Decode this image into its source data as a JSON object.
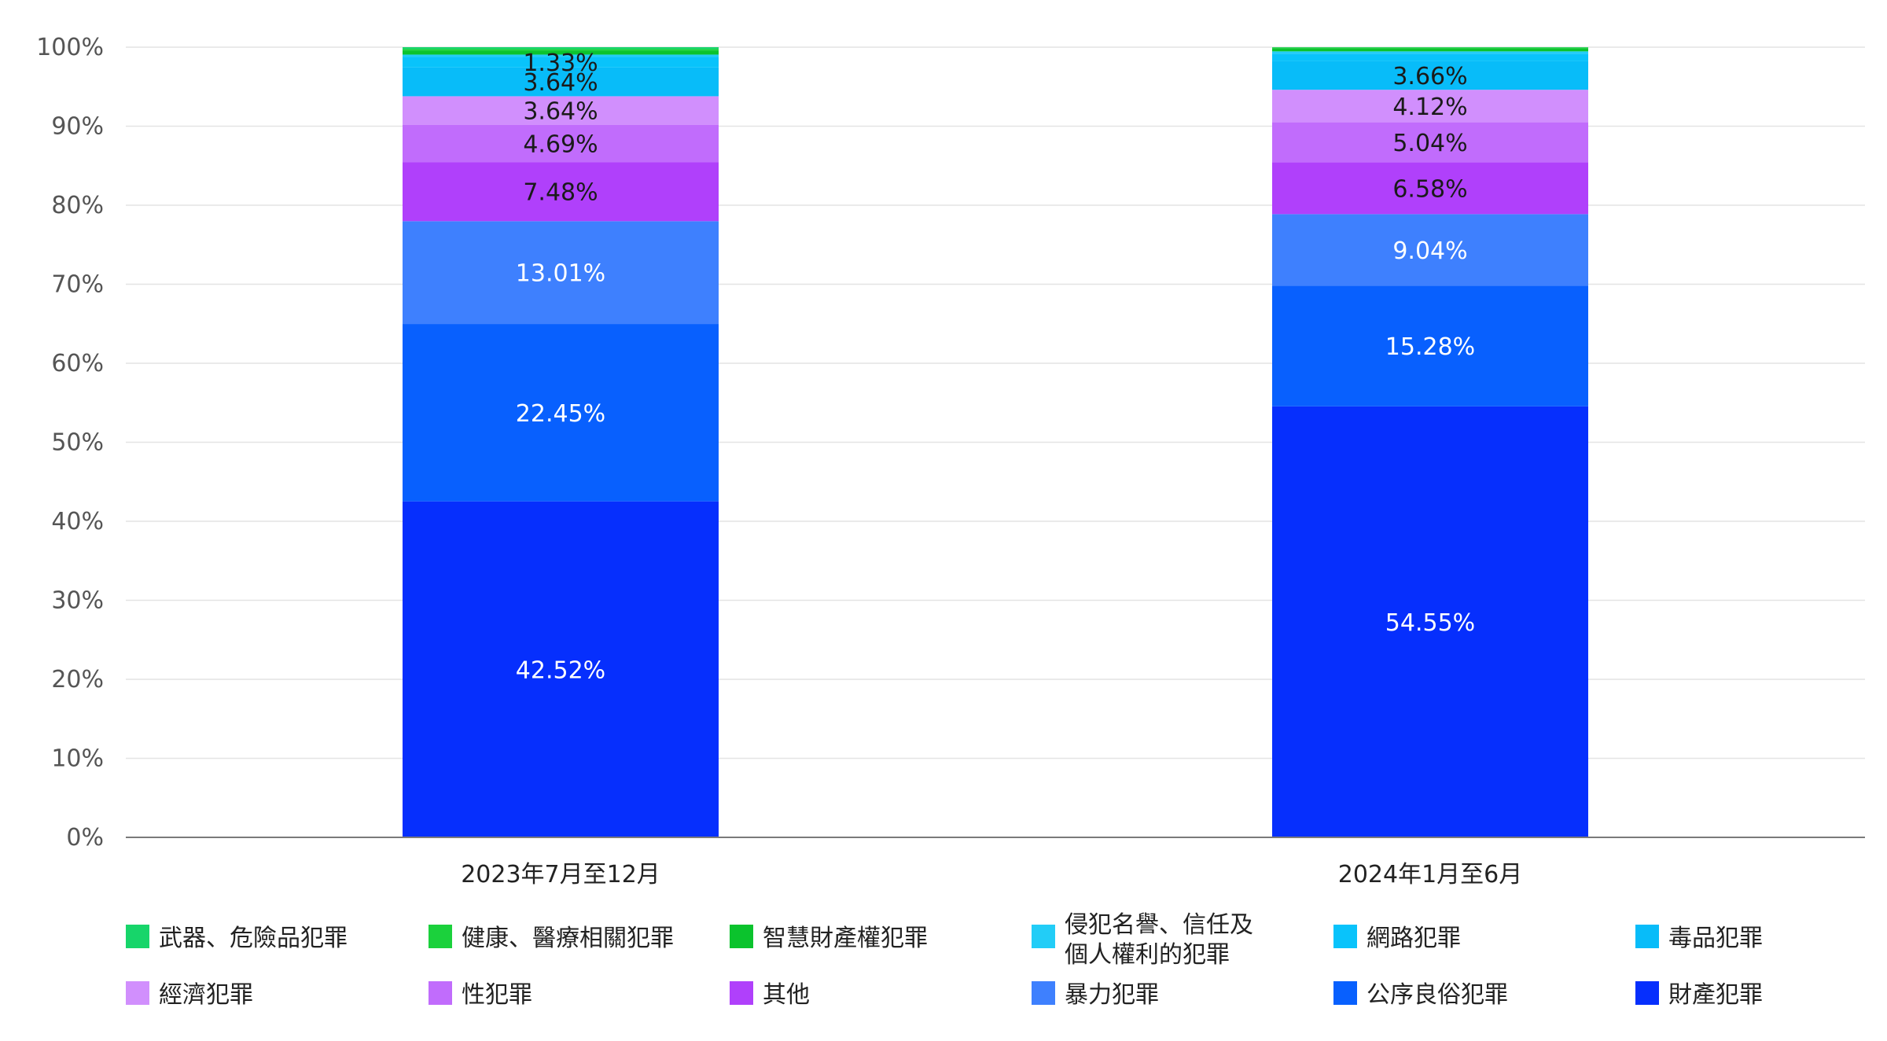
{
  "chart_data": {
    "type": "bar",
    "stacked": true,
    "title": "",
    "xlabel": "",
    "ylabel": "",
    "ylim": [
      0,
      100
    ],
    "y_ticks": [
      "0%",
      "10%",
      "20%",
      "30%",
      "40%",
      "50%",
      "60%",
      "70%",
      "80%",
      "90%",
      "100%"
    ],
    "grid": true,
    "legend_position": "bottom",
    "categories": [
      "2023年7月至12月",
      "2024年1月至6月"
    ],
    "series": [
      {
        "name": "財產犯罪",
        "color": "#062ffd",
        "values": [
          42.52,
          54.55
        ],
        "labels": [
          "42.52%",
          "54.55%"
        ]
      },
      {
        "name": "公序良俗犯罪",
        "color": "#0860fe",
        "values": [
          22.45,
          15.28
        ],
        "labels": [
          "22.45%",
          "15.28%"
        ]
      },
      {
        "name": "暴力犯罪",
        "color": "#3e80fe",
        "values": [
          13.01,
          9.04
        ],
        "labels": [
          "13.01%",
          "9.04%"
        ]
      },
      {
        "name": "其他",
        "color": "#b040fb",
        "values": [
          7.48,
          6.58
        ],
        "labels": [
          "7.48%",
          "6.58%"
        ]
      },
      {
        "name": "性犯罪",
        "color": "#c16cfc",
        "values": [
          4.69,
          5.04
        ],
        "labels": [
          "4.69%",
          "5.04%"
        ]
      },
      {
        "name": "經濟犯罪",
        "color": "#d18ffd",
        "values": [
          3.64,
          4.12
        ],
        "labels": [
          "3.64%",
          "4.12%"
        ]
      },
      {
        "name": "毒品犯罪",
        "color": "#08bcf9",
        "values": [
          3.64,
          3.66
        ],
        "labels": [
          "3.64%",
          "3.66%"
        ]
      },
      {
        "name": "網路犯罪",
        "color": "#09c3fb",
        "values": [
          1.33,
          0.9
        ],
        "labels": [
          "1.33%",
          ""
        ]
      },
      {
        "name": "侵犯名譽、信任及個人權利的犯罪",
        "color": "#22cdf7",
        "values": [
          0.3,
          0.3
        ],
        "labels": [
          "",
          ""
        ]
      },
      {
        "name": "智慧財產權犯罪",
        "color": "#0bc32d",
        "values": [
          0.5,
          0.4
        ],
        "labels": [
          "",
          ""
        ]
      },
      {
        "name": "健康、醫療相關犯罪",
        "color": "#1bd13c",
        "values": [
          0.2,
          0.1
        ],
        "labels": [
          "",
          ""
        ]
      },
      {
        "name": "武器、危險品犯罪",
        "color": "#17d56a",
        "values": [
          0.24,
          0.03
        ],
        "labels": [
          "",
          ""
        ]
      }
    ],
    "legend": [
      {
        "name": "武器、危險品犯罪",
        "color": "#17d56a"
      },
      {
        "name": "健康、醫療相關犯罪",
        "color": "#1bd13c"
      },
      {
        "name": "智慧財產權犯罪",
        "color": "#0bc32d"
      },
      {
        "name": "侵犯名譽、信任及個人權利的犯罪",
        "line1": "侵犯名譽、信任及",
        "line2": "個人權利的犯罪",
        "color": "#22cdf7"
      },
      {
        "name": "網路犯罪",
        "color": "#09c3fb"
      },
      {
        "name": "毒品犯罪",
        "color": "#08bcf9"
      },
      {
        "name": "經濟犯罪",
        "color": "#d18ffd"
      },
      {
        "name": "性犯罪",
        "color": "#c16cfc"
      },
      {
        "name": "其他",
        "color": "#b040fb"
      },
      {
        "name": "暴力犯罪",
        "color": "#3e80fe"
      },
      {
        "name": "公序良俗犯罪",
        "color": "#0860fe"
      },
      {
        "name": "財產犯罪",
        "color": "#062ffd"
      }
    ]
  }
}
